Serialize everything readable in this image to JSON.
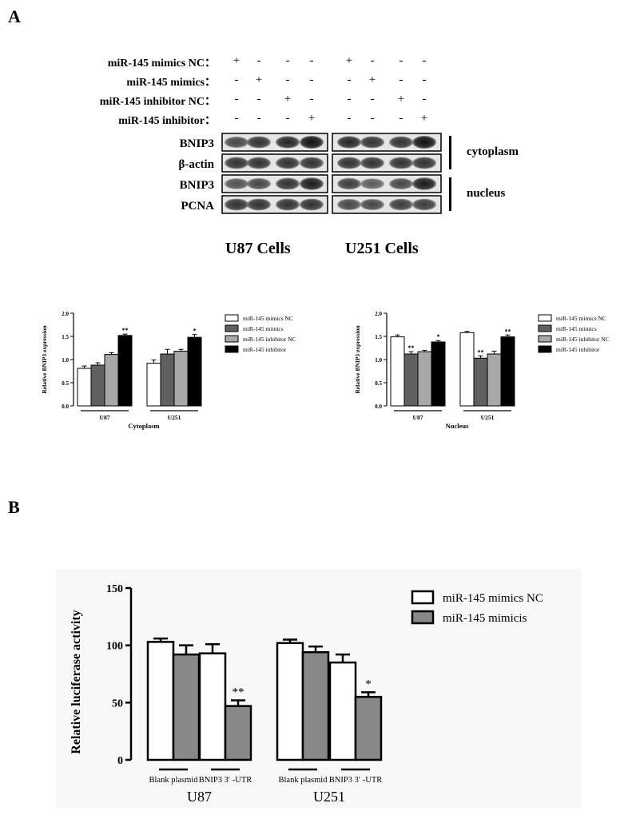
{
  "figure": {
    "panel_a_label": "A",
    "panel_b_label": "B"
  },
  "western_blot": {
    "conditions": [
      {
        "label": "miR-145 mimics NC：",
        "signs": [
          "+",
          "-",
          "-",
          "-",
          "+",
          "-",
          "-",
          "-"
        ]
      },
      {
        "label": "miR-145 mimics：",
        "signs": [
          "-",
          "+",
          "-",
          "-",
          "-",
          "+",
          "-",
          "-"
        ]
      },
      {
        "label": "miR-145 inhibitor NC：",
        "signs": [
          "-",
          "-",
          "+",
          "-",
          "-",
          "-",
          "+",
          "-"
        ]
      },
      {
        "label": "miR-145 inhibitor：",
        "signs": [
          "-",
          "-",
          "-",
          "+",
          "-",
          "-",
          "-",
          "+"
        ]
      }
    ],
    "rows": [
      {
        "label": "BNIP3"
      },
      {
        "label": "β-actin"
      },
      {
        "label": "BNIP3"
      },
      {
        "label": "PCNA"
      }
    ],
    "fractions": {
      "cytoplasm": "cytoplasm",
      "nucleus": "nucleus"
    },
    "cells": {
      "u87": "U87 Cells",
      "u251": "U251 Cells"
    }
  },
  "colors": {
    "white_bar": "#ffffff",
    "dark_gray_bar": "#606060",
    "light_gray_bar": "#a8a8a8",
    "black_bar": "#000000",
    "luciferase_gray": "#888888"
  },
  "chart_data": [
    {
      "type": "bar",
      "title": "",
      "xlabel": "Cytoplasm",
      "ylabel": "Relative BNIP3 expression",
      "ylim": [
        0,
        2.0
      ],
      "yticks": [
        "0.0",
        "0.5",
        "1.0",
        "1.5",
        "2.0"
      ],
      "categories": [
        "U87",
        "U251"
      ],
      "legend_position": "right",
      "series": [
        {
          "name": "miR-145 mimics NC",
          "color": "#ffffff",
          "values": [
            0.81,
            0.92
          ],
          "errors": [
            0.05,
            0.07
          ],
          "sig": [
            "",
            ""
          ]
        },
        {
          "name": "miR-145 mimics",
          "color": "#606060",
          "values": [
            0.88,
            1.12
          ],
          "errors": [
            0.05,
            0.1
          ],
          "sig": [
            "",
            ""
          ]
        },
        {
          "name": "miR-145 inhibitor NC",
          "color": "#a8a8a8",
          "values": [
            1.11,
            1.18
          ],
          "errors": [
            0.04,
            0.04
          ],
          "sig": [
            "",
            ""
          ]
        },
        {
          "name": "miR-145 inhibitor",
          "color": "#000000",
          "values": [
            1.52,
            1.48
          ],
          "errors": [
            0.03,
            0.06
          ],
          "sig": [
            "**",
            "*"
          ]
        }
      ]
    },
    {
      "type": "bar",
      "title": "",
      "xlabel": "Nucleus",
      "ylabel": "Relative BNIP3 expression",
      "ylim": [
        0,
        2.0
      ],
      "yticks": [
        "0.0",
        "0.5",
        "1.0",
        "1.5",
        "2.0"
      ],
      "categories": [
        "U87",
        "U251"
      ],
      "legend_position": "right",
      "series": [
        {
          "name": "miR-145 mimics NC",
          "color": "#ffffff",
          "values": [
            1.49,
            1.58
          ],
          "errors": [
            0.04,
            0.03
          ],
          "sig": [
            "",
            ""
          ]
        },
        {
          "name": "miR-145 mimics",
          "color": "#606060",
          "values": [
            1.12,
            1.03
          ],
          "errors": [
            0.05,
            0.05
          ],
          "sig": [
            "**",
            "**"
          ]
        },
        {
          "name": "miR-145 inhibitor NC",
          "color": "#a8a8a8",
          "values": [
            1.17,
            1.12
          ],
          "errors": [
            0.03,
            0.06
          ],
          "sig": [
            "",
            ""
          ]
        },
        {
          "name": "miR-145 inhibitor",
          "color": "#000000",
          "values": [
            1.38,
            1.49
          ],
          "errors": [
            0.03,
            0.04
          ],
          "sig": [
            "*",
            "**"
          ]
        }
      ]
    },
    {
      "type": "bar",
      "title": "",
      "xlabel": "",
      "ylabel": "Relative luciferase activity",
      "ylim": [
        0,
        150
      ],
      "yticks": [
        "0",
        "50",
        "100",
        "150"
      ],
      "groups": [
        "U87",
        "U251"
      ],
      "subcategories": [
        "Blank plasmid",
        "BNIP3 3′ -UTR",
        "Blank plasmid",
        "BNIP3 3′ -UTR"
      ],
      "legend_position": "top-right",
      "series": [
        {
          "name": "miR-145 mimics NC",
          "color": "#ffffff",
          "values": [
            103,
            93,
            102,
            85
          ],
          "errors": [
            3,
            8,
            3,
            7
          ],
          "sig": [
            "",
            "",
            "",
            ""
          ]
        },
        {
          "name": "miR-145 mimicis",
          "color": "#888888",
          "values": [
            92,
            47,
            94,
            55
          ],
          "errors": [
            8,
            5,
            5,
            4
          ],
          "sig": [
            "",
            "**",
            "",
            "*"
          ]
        }
      ]
    }
  ]
}
